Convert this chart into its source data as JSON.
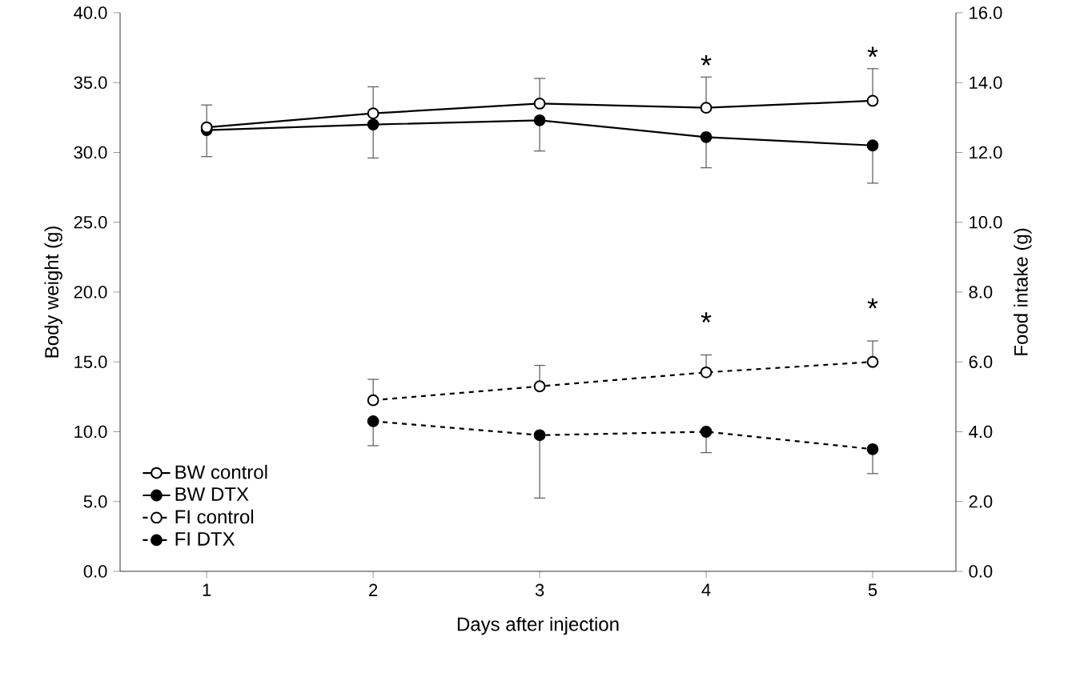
{
  "chart_data": {
    "type": "line",
    "xlabel": "Days after injection",
    "ylabel": "Body weight (g)",
    "y2label": "Food intake (g)",
    "categories": [
      "1",
      "2",
      "3",
      "4",
      "5"
    ],
    "ylim": [
      0,
      40
    ],
    "yticks": [
      {
        "value": 0,
        "label": "0.0"
      },
      {
        "value": 5,
        "label": "5.0"
      },
      {
        "value": 10,
        "label": "10.0"
      },
      {
        "value": 15,
        "label": "15.0"
      },
      {
        "value": 20,
        "label": "20.0"
      },
      {
        "value": 25,
        "label": "25.0"
      },
      {
        "value": 30,
        "label": "30.0"
      },
      {
        "value": 35,
        "label": "35.0"
      },
      {
        "value": 40,
        "label": "40.0"
      }
    ],
    "y2lim": [
      0,
      16
    ],
    "y2ticks": [
      {
        "value": 0,
        "label": "0.0"
      },
      {
        "value": 2,
        "label": "2.0"
      },
      {
        "value": 4,
        "label": "4.0"
      },
      {
        "value": 6,
        "label": "6.0"
      },
      {
        "value": 8,
        "label": "8.0"
      },
      {
        "value": 10,
        "label": "10.0"
      },
      {
        "value": 12,
        "label": "12.0"
      },
      {
        "value": 14,
        "label": "14.0"
      },
      {
        "value": 16,
        "label": "16.0"
      }
    ],
    "grid": false,
    "legend": "bottom left",
    "marker": "circle",
    "series": [
      {
        "name": "BW control",
        "color": "#000000",
        "colors": [
          "#ffffff",
          "#ffffff",
          "#ffffff",
          "#ffffff",
          "#ffffff"
        ],
        "line_style": "solid",
        "values": [
          31.8,
          32.8,
          33.5,
          33.2,
          33.7
        ],
        "errors": [
          [
            31.8,
            33.4
          ],
          [
            32.8,
            34.7
          ],
          [
            33.5,
            35.3
          ],
          [
            33.2,
            35.4
          ],
          [
            33.7,
            36.0
          ]
        ]
      },
      {
        "name": "BW DTX",
        "color": "#000000",
        "line_style": "solid",
        "values": [
          31.6,
          32.0,
          32.3,
          31.1,
          30.5
        ],
        "errors": [
          [
            29.7,
            31.6
          ],
          [
            29.6,
            32.0
          ],
          [
            30.1,
            32.3
          ],
          [
            28.9,
            31.1
          ],
          [
            27.8,
            30.5
          ]
        ]
      },
      {
        "name": "FI control",
        "color": "#000000",
        "colors": [
          null,
          "#ffffff",
          "#ffffff",
          "#ffffff",
          "#ffffff"
        ],
        "line_style": "dashed",
        "axis": "y2",
        "values": [
          null,
          4.9,
          5.3,
          5.7,
          6.0
        ],
        "errors": [
          null,
          [
            4.9,
            5.5
          ],
          [
            5.3,
            5.9
          ],
          [
            5.7,
            6.2
          ],
          [
            6.0,
            6.6
          ]
        ]
      },
      {
        "name": "FI DTX",
        "color": "#000000",
        "line_style": "dashed",
        "axis": "y2",
        "values": [
          null,
          4.3,
          3.9,
          4.0,
          3.5
        ],
        "errors": [
          null,
          [
            3.6,
            4.3
          ],
          [
            2.1,
            3.9
          ],
          [
            3.4,
            4.0
          ],
          [
            2.8,
            3.5
          ]
        ]
      }
    ],
    "annotations": [
      {
        "text": "*",
        "x": "4",
        "y": 33.2
      },
      {
        "text": "*",
        "x": "5",
        "y": 33.7
      },
      "*",
      "*"
    ]
  }
}
